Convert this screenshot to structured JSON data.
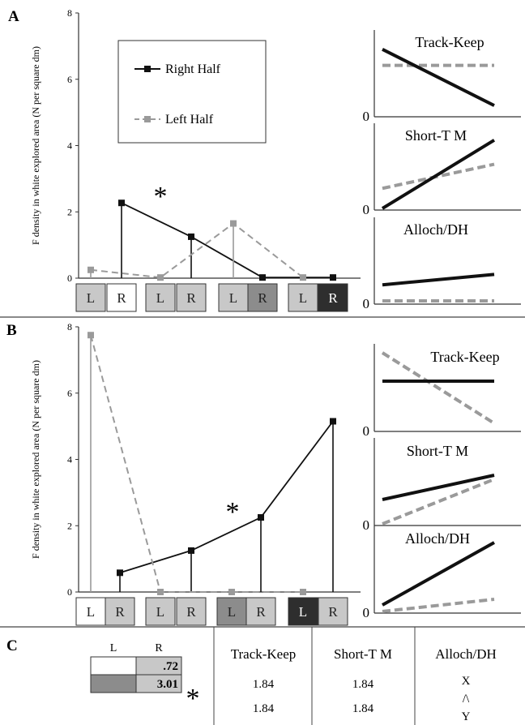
{
  "colors": {
    "right_series": "#111111",
    "left_series": "#9a9a9a",
    "box_white": "#ffffff",
    "box_light": "#c8c8c8",
    "box_mid": "#8c8c8c",
    "box_dark": "#2e2e2e"
  },
  "panels": {
    "a": {
      "label": "A"
    },
    "b": {
      "label": "B"
    },
    "c": {
      "label": "C"
    }
  },
  "chart_data": [
    {
      "id": "A-main",
      "type": "line",
      "ylabel": "F density in white explored area (N per square dm)",
      "ylim": [
        0,
        8
      ],
      "yticks": [
        "0",
        "2",
        "4",
        "6",
        "8"
      ],
      "grid": false,
      "legend_position": "top-left",
      "series": [
        {
          "name": "Right Half",
          "points": [
            {
              "pos": 2,
              "y": 2.27
            },
            {
              "pos": 4,
              "y": 1.25
            },
            {
              "pos": 6,
              "y": 0.02
            },
            {
              "pos": 8,
              "y": 0.02
            }
          ]
        },
        {
          "name": "Left Half",
          "points": [
            {
              "pos": 1,
              "y": 0.25
            },
            {
              "pos": 3,
              "y": 0.02
            },
            {
              "pos": 5,
              "y": 1.65
            },
            {
              "pos": 7,
              "y": 0.02
            }
          ]
        }
      ],
      "annotation": "*",
      "boxes": [
        {
          "pos": 1,
          "text": "L",
          "shade": "light"
        },
        {
          "pos": 2,
          "text": "R",
          "shade": "white"
        },
        {
          "pos": 3,
          "text": "L",
          "shade": "light"
        },
        {
          "pos": 4,
          "text": "R",
          "shade": "light"
        },
        {
          "pos": 5,
          "text": "L",
          "shade": "light"
        },
        {
          "pos": 6,
          "text": "R",
          "shade": "mid"
        },
        {
          "pos": 7,
          "text": "L",
          "shade": "light"
        },
        {
          "pos": 8,
          "text": "R",
          "shade": "dark"
        }
      ]
    },
    {
      "id": "B-main",
      "type": "line",
      "ylabel": "F density in white explored area (N per square dm)",
      "ylim": [
        0,
        8
      ],
      "yticks": [
        "0",
        "2",
        "4",
        "6",
        "8"
      ],
      "grid": false,
      "series": [
        {
          "name": "Right Half",
          "points": [
            {
              "pos": 2,
              "y": 0.58
            },
            {
              "pos": 4,
              "y": 1.25
            },
            {
              "pos": 6,
              "y": 2.25
            },
            {
              "pos": 8,
              "y": 5.15
            }
          ]
        },
        {
          "name": "Left Half",
          "points": [
            {
              "pos": 1,
              "y": 7.75
            },
            {
              "pos": 3,
              "y": 0.0
            },
            {
              "pos": 5,
              "y": 0.0
            },
            {
              "pos": 7,
              "y": 0.0
            }
          ]
        }
      ],
      "annotation": "*",
      "boxes": [
        {
          "pos": 1,
          "text": "L",
          "shade": "white"
        },
        {
          "pos": 2,
          "text": "R",
          "shade": "light"
        },
        {
          "pos": 3,
          "text": "L",
          "shade": "light"
        },
        {
          "pos": 4,
          "text": "R",
          "shade": "light"
        },
        {
          "pos": 5,
          "text": "L",
          "shade": "mid"
        },
        {
          "pos": 6,
          "text": "R",
          "shade": "light"
        },
        {
          "pos": 7,
          "text": "L",
          "shade": "dark"
        },
        {
          "pos": 8,
          "text": "R",
          "shade": "light"
        }
      ]
    },
    {
      "id": "A-models",
      "type": "line",
      "models": [
        {
          "title": "Track-Keep",
          "zero_label": "0",
          "right": [
            0.82,
            0.12
          ],
          "left": [
            0.62,
            0.62
          ]
        },
        {
          "title": "Short-T M",
          "zero_label": "0",
          "right": [
            0.0,
            0.85
          ],
          "left": [
            0.25,
            0.55
          ]
        },
        {
          "title": "Alloch/DH",
          "zero_label": "0",
          "right": [
            0.22,
            0.35
          ],
          "left": [
            0.02,
            0.02
          ]
        }
      ]
    },
    {
      "id": "B-models",
      "type": "line",
      "models": [
        {
          "title": "Track-Keep",
          "zero_label": "0",
          "right": [
            0.6,
            0.6
          ],
          "left": [
            0.95,
            0.08
          ]
        },
        {
          "title": "Short-T M",
          "zero_label": "0",
          "right": [
            0.3,
            0.6
          ],
          "left": [
            0.0,
            0.55
          ]
        },
        {
          "title": "Alloch/DH",
          "zero_label": "0",
          "right": [
            0.08,
            0.85
          ],
          "left": [
            0.0,
            0.15
          ]
        }
      ]
    },
    {
      "id": "C-table",
      "type": "table",
      "mini_grid": {
        "col_labels": [
          "L",
          "R"
        ],
        "rows": [
          {
            "left_shade": "white",
            "right_shade": "light",
            "value": ".72"
          },
          {
            "left_shade": "mid",
            "right_shade": "light",
            "value": "3.01"
          }
        ],
        "annotation": "*"
      },
      "columns": [
        {
          "header": "Track-Keep",
          "values": [
            "1.84",
            "1.84"
          ]
        },
        {
          "header": "Short-T M",
          "values": [
            "1.84",
            "1.84"
          ]
        },
        {
          "header": "Alloch/DH",
          "values": [
            "X",
            "/\\",
            "Y"
          ]
        }
      ]
    }
  ]
}
